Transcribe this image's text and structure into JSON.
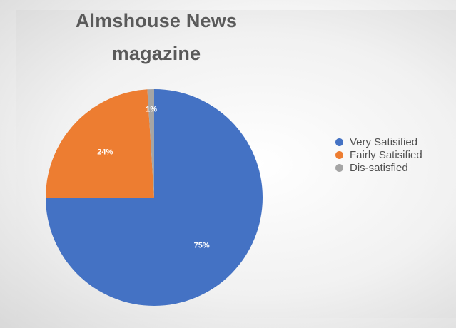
{
  "chart_data": {
    "type": "pie",
    "title": "Almshouse News magazine",
    "title_lines": [
      "Almshouse News",
      "magazine"
    ],
    "slices": [
      {
        "name": "Very Satisified",
        "value": 75,
        "label": "75%",
        "color": "#4472c4"
      },
      {
        "name": "Fairly Satisified",
        "value": 24,
        "label": "24%",
        "color": "#ed7d31"
      },
      {
        "name": "Dis-satisfied",
        "value": 1,
        "label": "1%",
        "color": "#a5a5a5"
      }
    ],
    "legend": {
      "placement": "right",
      "items": [
        "Very Satisified",
        "Fairly Satisified",
        "Dis-satisfied"
      ]
    }
  }
}
